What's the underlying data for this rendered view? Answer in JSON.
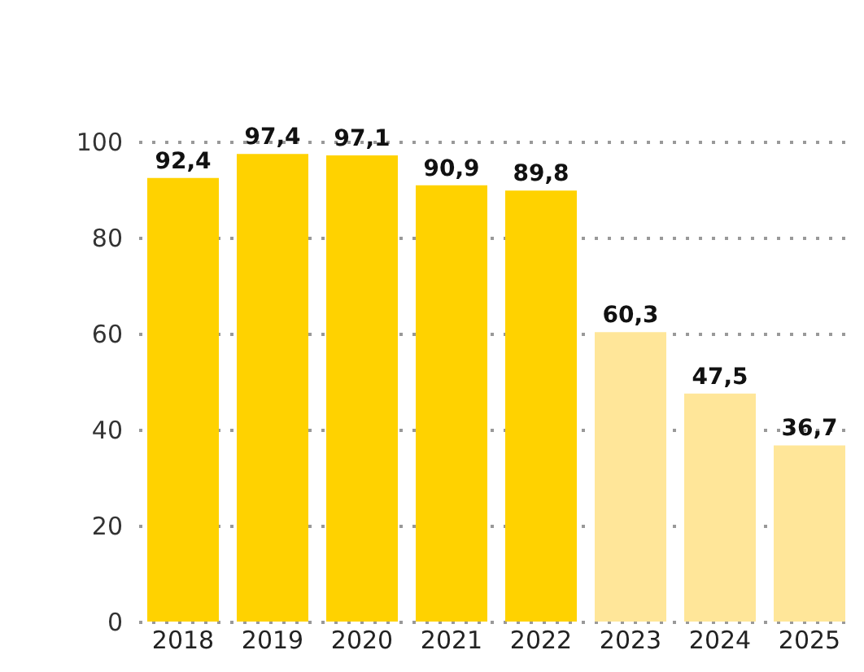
{
  "chart_data": {
    "type": "bar",
    "categories": [
      "2018",
      "2019",
      "2020",
      "2021",
      "2022",
      "2023",
      "2024",
      "2025"
    ],
    "values": [
      92.4,
      97.4,
      97.1,
      90.9,
      89.8,
      60.3,
      47.5,
      36.7
    ],
    "colors": [
      "#ffd200",
      "#ffd200",
      "#ffd200",
      "#ffd200",
      "#ffd200",
      "#ffe699",
      "#ffe699",
      "#ffe699"
    ],
    "value_labels": [
      "92,4",
      "97,4",
      "97,1",
      "90,9",
      "89,8",
      "60,3",
      "47,5",
      "36,7"
    ],
    "ylim": [
      0,
      100
    ],
    "yticks": [
      0,
      20,
      40,
      60,
      80,
      100
    ],
    "grid": "y"
  }
}
